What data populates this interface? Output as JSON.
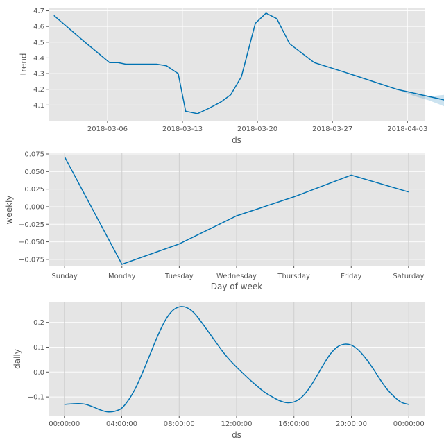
{
  "chart_data": [
    {
      "type": "line",
      "ylabel": "trend",
      "xlabel": "ds",
      "x_ticks": [
        "2018-03-06",
        "2018-03-13",
        "2018-03-20",
        "2018-03-27",
        "2018-04-03"
      ],
      "x_tick_days": [
        5,
        12,
        19,
        26,
        33
      ],
      "x_range_days": [
        -0.5,
        34.6
      ],
      "ylim": [
        4.0,
        4.72
      ],
      "y_ticks": [
        "4.1",
        "4.2",
        "4.3",
        "4.4",
        "4.5",
        "4.6",
        "4.7"
      ],
      "x_day_points": [
        0.0,
        2.9,
        5.2,
        6.0,
        6.7,
        8.6,
        9.6,
        10.5,
        11.6,
        12.3,
        13.4,
        14.5,
        15.6,
        16.5,
        17.5,
        18.8,
        19.8,
        20.8,
        22.0,
        24.3,
        27.1,
        32.0,
        37.9
      ],
      "series": [
        {
          "values": [
            4.67,
            4.5,
            4.37,
            4.37,
            4.36,
            4.36,
            4.36,
            4.35,
            4.3,
            4.06,
            4.045,
            4.08,
            4.12,
            4.165,
            4.28,
            4.62,
            4.685,
            4.65,
            4.49,
            4.37,
            4.31,
            4.2,
            4.11
          ]
        }
      ],
      "uncertainty": {
        "x_day_points": [
          32.0,
          33.5,
          35.0,
          36.5,
          37.9
        ],
        "lower": [
          4.2,
          4.16,
          4.13,
          4.09,
          4.04
        ],
        "upper": [
          4.2,
          4.17,
          4.155,
          4.165,
          4.18
        ]
      }
    },
    {
      "type": "line",
      "ylabel": "weekly",
      "xlabel": "Day of week",
      "categories": [
        "Sunday",
        "Monday",
        "Tuesday",
        "Wednesday",
        "Thursday",
        "Friday",
        "Saturday"
      ],
      "ylim": [
        -0.085,
        0.076
      ],
      "y_ticks": [
        "0.075",
        "0.050",
        "0.025",
        "0.000",
        "−0.025",
        "−0.050",
        "−0.075"
      ],
      "y_tick_values": [
        0.075,
        0.05,
        0.025,
        0.0,
        -0.025,
        -0.05,
        -0.075
      ],
      "series": [
        {
          "values": [
            0.071,
            -0.082,
            -0.053,
            -0.013,
            0.014,
            0.045,
            0.021
          ]
        }
      ]
    },
    {
      "type": "line",
      "ylabel": "daily",
      "xlabel": "ds",
      "x_ticks": [
        "00:00:00",
        "04:00:00",
        "08:00:00",
        "12:00:00",
        "16:00:00",
        "20:00:00",
        "00:00:00"
      ],
      "x_tick_hours": [
        0,
        4,
        8,
        12,
        16,
        20,
        24
      ],
      "ylim": [
        -0.175,
        0.28
      ],
      "y_ticks": [
        "0.2",
        "0.1",
        "0.0",
        "−0.1"
      ],
      "y_tick_values": [
        0.2,
        0.1,
        0.0,
        -0.1
      ],
      "x_hours": [
        0,
        0.5,
        1,
        1.5,
        2,
        2.5,
        3,
        3.5,
        4,
        4.5,
        5,
        5.5,
        6,
        6.5,
        7,
        7.5,
        8,
        8.5,
        9,
        9.5,
        10,
        10.5,
        11,
        11.5,
        12,
        12.5,
        13,
        13.5,
        14,
        14.5,
        15,
        15.5,
        16,
        16.5,
        17,
        17.5,
        18,
        18.5,
        19,
        19.5,
        20,
        20.5,
        21,
        21.5,
        22,
        22.5,
        23,
        23.5,
        24
      ],
      "series": [
        {
          "values": [
            -0.13,
            -0.128,
            -0.127,
            -0.13,
            -0.14,
            -0.152,
            -0.16,
            -0.158,
            -0.145,
            -0.11,
            -0.06,
            0.005,
            0.075,
            0.145,
            0.205,
            0.245,
            0.262,
            0.26,
            0.24,
            0.205,
            0.165,
            0.125,
            0.085,
            0.05,
            0.02,
            -0.008,
            -0.035,
            -0.06,
            -0.083,
            -0.1,
            -0.115,
            -0.123,
            -0.12,
            -0.103,
            -0.07,
            -0.025,
            0.025,
            0.07,
            0.1,
            0.112,
            0.108,
            0.088,
            0.055,
            0.015,
            -0.03,
            -0.07,
            -0.1,
            -0.122,
            -0.13
          ]
        }
      ]
    }
  ]
}
